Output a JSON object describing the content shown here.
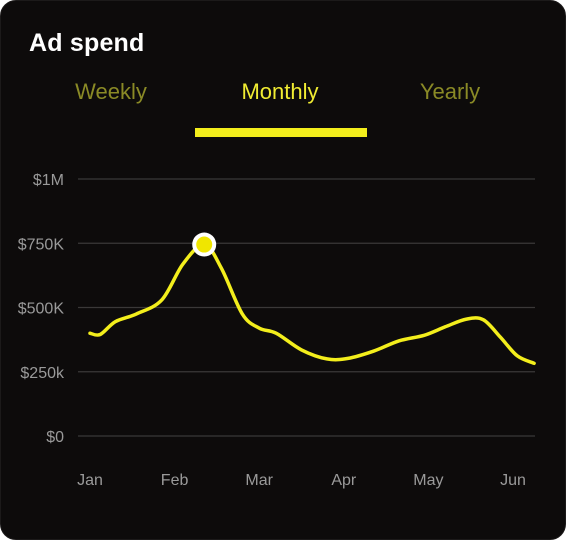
{
  "card": {
    "title": "Ad spend"
  },
  "tabs": [
    {
      "label": "Weekly",
      "active": false
    },
    {
      "label": "Monthly",
      "active": true
    },
    {
      "label": "Yearly",
      "active": false
    }
  ],
  "colors": {
    "background": "#0d0b0b",
    "accent": "#f3ee1c",
    "inactive_tab": "#8a8a26",
    "gridline": "#3a3838",
    "tick_text": "#9a9a9a"
  },
  "chart_data": {
    "type": "line",
    "title": "",
    "xlabel": "",
    "ylabel": "",
    "categories": [
      "Jan",
      "Feb",
      "Mar",
      "Apr",
      "May",
      "Jun"
    ],
    "y_ticks": [
      "$0",
      "$250k",
      "$500K",
      "$750K",
      "$1M"
    ],
    "ylim": [
      0,
      1000000
    ],
    "x_range": [
      1,
      6.25
    ],
    "grid": true,
    "series": [
      {
        "points": [
          [
            1,
            400000
          ],
          [
            1.12,
            395000
          ],
          [
            1.3,
            445000
          ],
          [
            1.55,
            475000
          ],
          [
            1.85,
            530000
          ],
          [
            2.1,
            670000
          ],
          [
            2.35,
            745000
          ],
          [
            2.55,
            655000
          ],
          [
            2.8,
            475000
          ],
          [
            3.0,
            420000
          ],
          [
            3.2,
            400000
          ],
          [
            3.5,
            335000
          ],
          [
            3.8,
            300000
          ],
          [
            4.05,
            302000
          ],
          [
            4.35,
            330000
          ],
          [
            4.65,
            370000
          ],
          [
            4.95,
            392000
          ],
          [
            5.2,
            425000
          ],
          [
            5.45,
            455000
          ],
          [
            5.65,
            452000
          ],
          [
            5.85,
            385000
          ],
          [
            6.05,
            312000
          ],
          [
            6.25,
            283000
          ]
        ]
      }
    ],
    "highlight": {
      "x": 2.35,
      "y": 745000
    }
  }
}
